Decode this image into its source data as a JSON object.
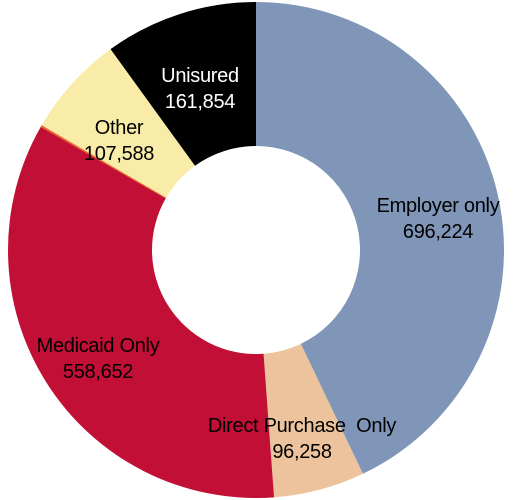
{
  "chart_data": {
    "type": "pie",
    "variant": "donut",
    "title": "",
    "legend": "none",
    "slices": [
      {
        "label": "Employer only",
        "value": 696224,
        "value_text": "696,224",
        "color": "#7f96b8",
        "label_color": "#000000"
      },
      {
        "label": "Direct Purchase  Only",
        "value": 96258,
        "value_text": "96,258",
        "color": "#ecc39d",
        "label_color": "#000000"
      },
      {
        "label": "Medicaid Only",
        "value": 558652,
        "value_text": "558,652",
        "color": "#c20f35",
        "label_color": "#000000"
      },
      {
        "label": "",
        "value": 2000,
        "value_text": "",
        "color": "#e8661e",
        "label_color": "#000000"
      },
      {
        "label": "Other",
        "value": 107588,
        "value_text": "107,588",
        "color": "#f9eca9",
        "label_color": "#000000"
      },
      {
        "label": "Unisured",
        "value": 161854,
        "value_text": "161,854",
        "color": "#000000",
        "label_color": "#ffffff"
      }
    ]
  }
}
